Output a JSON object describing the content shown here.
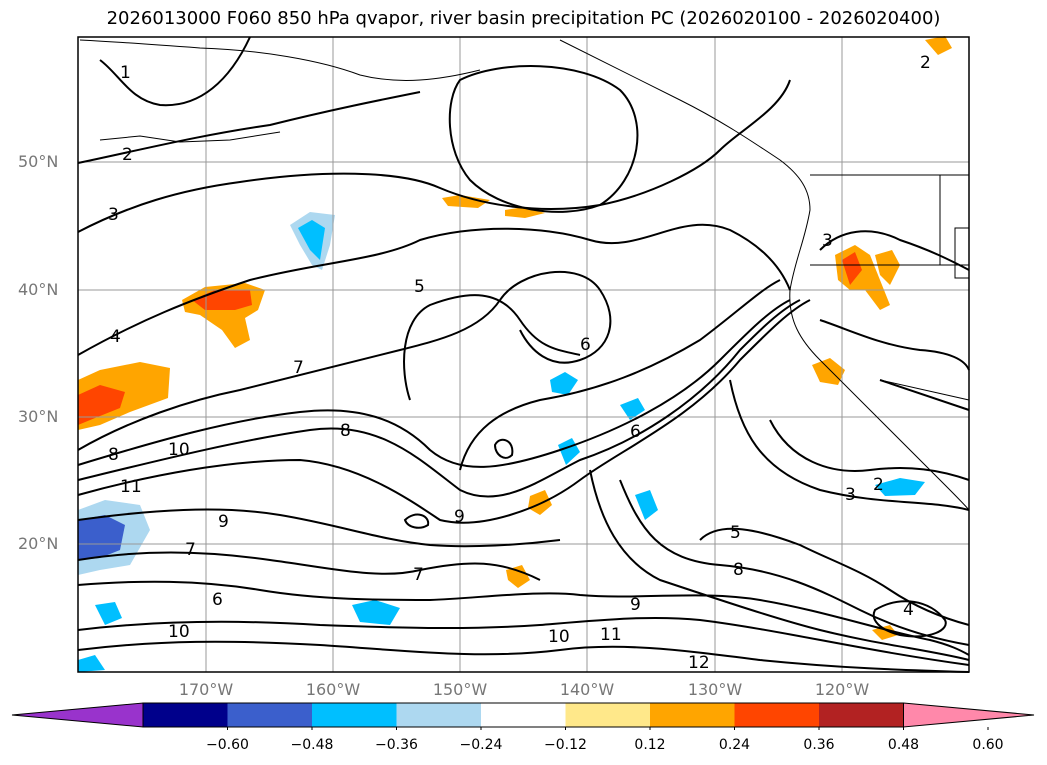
{
  "title": "2026013000 F060 850 hPa qvapor, river basin precipitation PC (2026020100 - 2026020400)",
  "lat_labels": [
    "50°N",
    "40°N",
    "30°N",
    "20°N"
  ],
  "lon_labels": [
    "170°W",
    "160°W",
    "150°W",
    "140°W",
    "130°W",
    "120°W"
  ],
  "colorbar": {
    "tick_labels": [
      "−0.60",
      "−0.48",
      "−0.36",
      "−0.24",
      "−0.12",
      "0.12",
      "0.24",
      "0.36",
      "0.48",
      "0.60"
    ],
    "colors": [
      "#9933cc",
      "#00008b",
      "#3b5fcc",
      "#00bfff",
      "#add8f0",
      "#ffffff",
      "#ffe88a",
      "#ffa500",
      "#ff4500",
      "#b22222",
      "#ff88aa"
    ]
  },
  "contour_labels": [
    "1",
    "2",
    "3",
    "4",
    "5",
    "6",
    "7",
    "8",
    "9",
    "10",
    "11",
    "12"
  ],
  "colors": {
    "land_line": "#000000",
    "grid": "#999999",
    "axis_label": "#777777"
  }
}
